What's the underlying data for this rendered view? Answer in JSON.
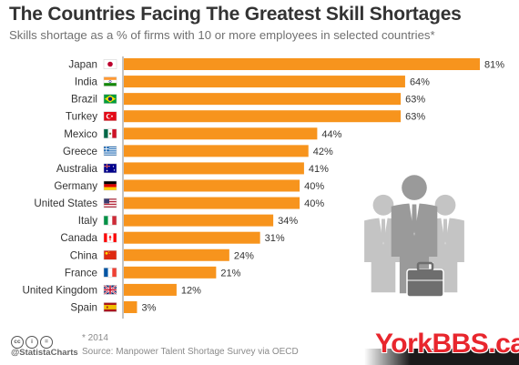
{
  "header": {
    "title": "The Countries Facing The Greatest Skill Shortages",
    "subtitle": "Skills shortage as a % of firms with 10 or more employees in selected countries*"
  },
  "chart_data": {
    "type": "bar",
    "orientation": "horizontal",
    "categories": [
      "Japan",
      "India",
      "Brazil",
      "Turkey",
      "Mexico",
      "Greece",
      "Australia",
      "Germany",
      "United States",
      "Italy",
      "Canada",
      "China",
      "France",
      "United Kingdom",
      "Spain"
    ],
    "values": [
      81,
      64,
      63,
      63,
      44,
      42,
      41,
      40,
      40,
      34,
      31,
      24,
      21,
      12,
      3
    ],
    "value_suffix": "%",
    "xlim": [
      0,
      81
    ],
    "grid": false,
    "legend": "none",
    "bar_color": "#f7941d",
    "axis_color": "#888888"
  },
  "flags": [
    "japan-flag-icon",
    "india-flag-icon",
    "brazil-flag-icon",
    "turkey-flag-icon",
    "mexico-flag-icon",
    "greece-flag-icon",
    "australia-flag-icon",
    "germany-flag-icon",
    "usa-flag-icon",
    "italy-flag-icon",
    "canada-flag-icon",
    "china-flag-icon",
    "france-flag-icon",
    "uk-flag-icon",
    "spain-flag-icon"
  ],
  "illustration": "business-people-icon",
  "footer": {
    "footnote": "* 2014",
    "source": "Source: Manpower Talent Shortage Survey via OECD",
    "brand": "@StatistaCharts",
    "license_icons": [
      "cc",
      "i",
      "="
    ]
  },
  "watermark": "YorkBBS.ca"
}
